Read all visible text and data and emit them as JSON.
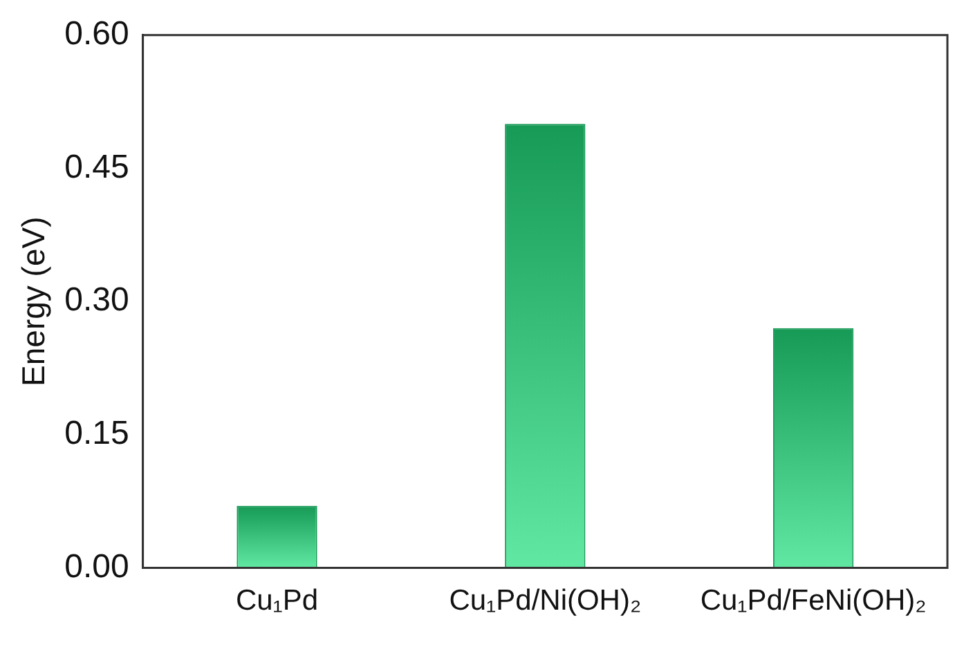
{
  "chart_data": {
    "type": "bar",
    "ylabel": "Energy (eV)",
    "categories": [
      "Cu₁Pd",
      "Cu₁Pd/Ni(OH)₂",
      "Cu₁Pd/FeNi(OH)₂"
    ],
    "values": [
      0.07,
      0.5,
      0.27
    ],
    "color": "#169a56",
    "ylim": [
      0,
      0.6
    ],
    "yticks": [
      {
        "value": 0,
        "label": "0.00"
      },
      {
        "value": 0.15,
        "label": "0.15"
      },
      {
        "value": 0.3,
        "label": "0.30"
      },
      {
        "value": 0.45,
        "label": "0.45"
      },
      {
        "value": 0.6,
        "label": "0.60"
      }
    ],
    "grid": false
  }
}
